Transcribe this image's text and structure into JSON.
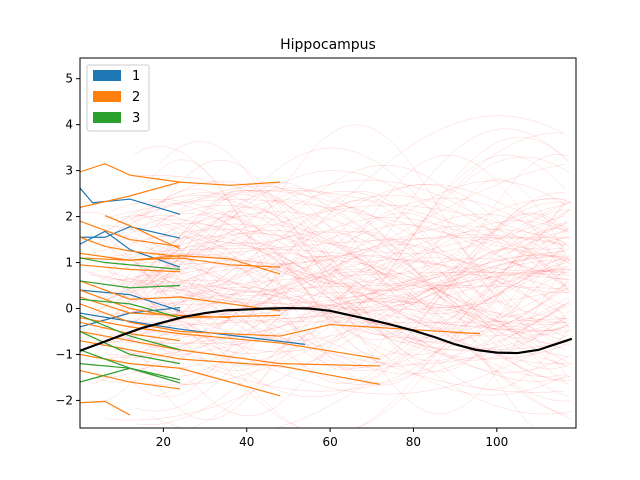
{
  "chart_data": {
    "type": "line",
    "title": "Hippocampus",
    "xlabel": "",
    "ylabel": "",
    "xlim": [
      0,
      119
    ],
    "ylim": [
      -2.6,
      5.45
    ],
    "xticks": [
      20,
      40,
      60,
      80,
      100
    ],
    "yticks": [
      -2,
      -1,
      0,
      1,
      2,
      3,
      4,
      5
    ],
    "grid": false,
    "legend": {
      "placement": "top-left",
      "entries": [
        {
          "label": "1",
          "color": "#1f77b4"
        },
        {
          "label": "2",
          "color": "#ff7f0e"
        },
        {
          "label": "3",
          "color": "#2ca02c"
        }
      ]
    },
    "mean_curve": {
      "color": "#000000",
      "x": [
        0,
        5,
        10,
        15,
        20,
        25,
        30,
        35,
        40,
        45,
        50,
        55,
        60,
        65,
        70,
        75,
        80,
        85,
        90,
        95,
        100,
        105,
        110,
        115,
        118
      ],
      "y": [
        -0.92,
        -0.75,
        -0.58,
        -0.42,
        -0.3,
        -0.18,
        -0.1,
        -0.04,
        -0.02,
        0.0,
        0.01,
        0.0,
        -0.05,
        -0.15,
        -0.25,
        -0.36,
        -0.48,
        -0.62,
        -0.78,
        -0.9,
        -0.96,
        -0.97,
        -0.9,
        -0.75,
        -0.66
      ]
    },
    "background_curves": {
      "color": "#ff0000",
      "count": 140,
      "x_range": [
        0,
        118
      ]
    },
    "series": [
      {
        "name": "1",
        "color": "#1f77b4",
        "x": [
          0,
          3,
          12,
          24
        ],
        "y": [
          2.62,
          2.3,
          2.38,
          2.05
        ]
      },
      {
        "name": "1",
        "color": "#1f77b4",
        "x": [
          0,
          6,
          12,
          24
        ],
        "y": [
          1.55,
          1.55,
          1.78,
          1.53
        ]
      },
      {
        "name": "1",
        "color": "#1f77b4",
        "x": [
          0,
          6,
          12,
          24
        ],
        "y": [
          1.4,
          1.68,
          1.28,
          0.9
        ]
      },
      {
        "name": "1",
        "color": "#1f77b4",
        "x": [
          0,
          12,
          24
        ],
        "y": [
          0.4,
          0.3,
          -0.05
        ]
      },
      {
        "name": "1",
        "color": "#1f77b4",
        "x": [
          0,
          12,
          24,
          54
        ],
        "y": [
          -0.1,
          -0.28,
          -0.45,
          -0.78
        ]
      },
      {
        "name": "1",
        "color": "#1f77b4",
        "x": [
          0,
          12,
          24
        ],
        "y": [
          -0.4,
          -0.1,
          0.02
        ]
      },
      {
        "name": "2",
        "color": "#ff7f0e",
        "x": [
          0,
          6,
          12,
          24
        ],
        "y": [
          2.97,
          3.15,
          2.9,
          2.75
        ]
      },
      {
        "name": "2",
        "color": "#ff7f0e",
        "x": [
          0,
          12,
          24,
          36,
          48
        ],
        "y": [
          2.2,
          2.45,
          2.75,
          2.68,
          2.75
        ]
      },
      {
        "name": "2",
        "color": "#ff7f0e",
        "x": [
          6,
          12,
          24
        ],
        "y": [
          2.02,
          1.8,
          1.3
        ]
      },
      {
        "name": "2",
        "color": "#ff7f0e",
        "x": [
          0,
          12,
          24
        ],
        "y": [
          1.9,
          1.5,
          1.35
        ]
      },
      {
        "name": "2",
        "color": "#ff7f0e",
        "x": [
          0,
          6,
          12,
          24
        ],
        "y": [
          1.55,
          1.35,
          1.25,
          1.13
        ]
      },
      {
        "name": "2",
        "color": "#ff7f0e",
        "x": [
          0,
          12,
          24,
          36,
          48
        ],
        "y": [
          1.2,
          1.05,
          1.1,
          0.95,
          0.9
        ]
      },
      {
        "name": "2",
        "color": "#ff7f0e",
        "x": [
          0,
          12,
          24,
          36,
          48
        ],
        "y": [
          1.1,
          1.05,
          1.15,
          1.08,
          0.75
        ]
      },
      {
        "name": "2",
        "color": "#ff7f0e",
        "x": [
          0,
          12,
          24
        ],
        "y": [
          0.95,
          0.85,
          0.8
        ]
      },
      {
        "name": "2",
        "color": "#ff7f0e",
        "x": [
          0,
          12,
          24,
          36,
          48
        ],
        "y": [
          0.6,
          0.2,
          0.25,
          0.1,
          -0.05
        ]
      },
      {
        "name": "2",
        "color": "#ff7f0e",
        "x": [
          0,
          12,
          24,
          48
        ],
        "y": [
          0.4,
          0.0,
          -0.2,
          -0.15
        ]
      },
      {
        "name": "2",
        "color": "#ff7f0e",
        "x": [
          0,
          12,
          24,
          48,
          60,
          96
        ],
        "y": [
          0.1,
          -0.3,
          -0.5,
          -0.6,
          -0.35,
          -0.55
        ]
      },
      {
        "name": "2",
        "color": "#ff7f0e",
        "x": [
          0,
          12,
          24,
          48,
          72
        ],
        "y": [
          -0.2,
          -0.4,
          -0.55,
          -0.75,
          -1.1
        ]
      },
      {
        "name": "2",
        "color": "#ff7f0e",
        "x": [
          0,
          12,
          24,
          36,
          48,
          72
        ],
        "y": [
          -0.5,
          -0.7,
          -0.9,
          -1.05,
          -1.2,
          -1.25
        ]
      },
      {
        "name": "2",
        "color": "#ff7f0e",
        "x": [
          0,
          12,
          24,
          48,
          72
        ],
        "y": [
          -0.7,
          -0.9,
          -1.1,
          -1.25,
          -1.65
        ]
      },
      {
        "name": "2",
        "color": "#ff7f0e",
        "x": [
          0,
          12,
          24,
          48
        ],
        "y": [
          -1.0,
          -1.2,
          -1.3,
          -1.9
        ]
      },
      {
        "name": "2",
        "color": "#ff7f0e",
        "x": [
          0,
          12,
          24
        ],
        "y": [
          -1.35,
          -1.6,
          -1.75
        ]
      },
      {
        "name": "2",
        "color": "#ff7f0e",
        "x": [
          0,
          6,
          12
        ],
        "y": [
          -2.05,
          -2.02,
          -2.32
        ]
      },
      {
        "name": "2",
        "color": "#ff7f0e",
        "x": [
          0,
          12,
          24
        ],
        "y": [
          -0.3,
          -0.55,
          -0.7
        ]
      },
      {
        "name": "2",
        "color": "#ff7f0e",
        "x": [
          0,
          12,
          24,
          36
        ],
        "y": [
          0.25,
          -0.1,
          -0.15,
          -0.2
        ]
      },
      {
        "name": "3",
        "color": "#2ca02c",
        "x": [
          0,
          6,
          12,
          24
        ],
        "y": [
          1.1,
          1.0,
          0.95,
          0.85
        ]
      },
      {
        "name": "3",
        "color": "#2ca02c",
        "x": [
          0,
          12,
          24
        ],
        "y": [
          0.6,
          0.45,
          0.5
        ]
      },
      {
        "name": "3",
        "color": "#2ca02c",
        "x": [
          0,
          12,
          24
        ],
        "y": [
          0.2,
          0.1,
          -0.2
        ]
      },
      {
        "name": "3",
        "color": "#2ca02c",
        "x": [
          0,
          12,
          24
        ],
        "y": [
          -0.15,
          -0.6,
          -0.9
        ]
      },
      {
        "name": "3",
        "color": "#2ca02c",
        "x": [
          0,
          12,
          24
        ],
        "y": [
          -0.5,
          -1.0,
          -1.2
        ]
      },
      {
        "name": "3",
        "color": "#2ca02c",
        "x": [
          0,
          12,
          24
        ],
        "y": [
          -0.9,
          -1.3,
          -1.55
        ]
      },
      {
        "name": "3",
        "color": "#2ca02c",
        "x": [
          0,
          6,
          12
        ],
        "y": [
          -1.6,
          -1.45,
          -1.3
        ]
      },
      {
        "name": "3",
        "color": "#2ca02c",
        "x": [
          0,
          12,
          24
        ],
        "y": [
          -1.2,
          -1.3,
          -1.62
        ]
      }
    ]
  }
}
